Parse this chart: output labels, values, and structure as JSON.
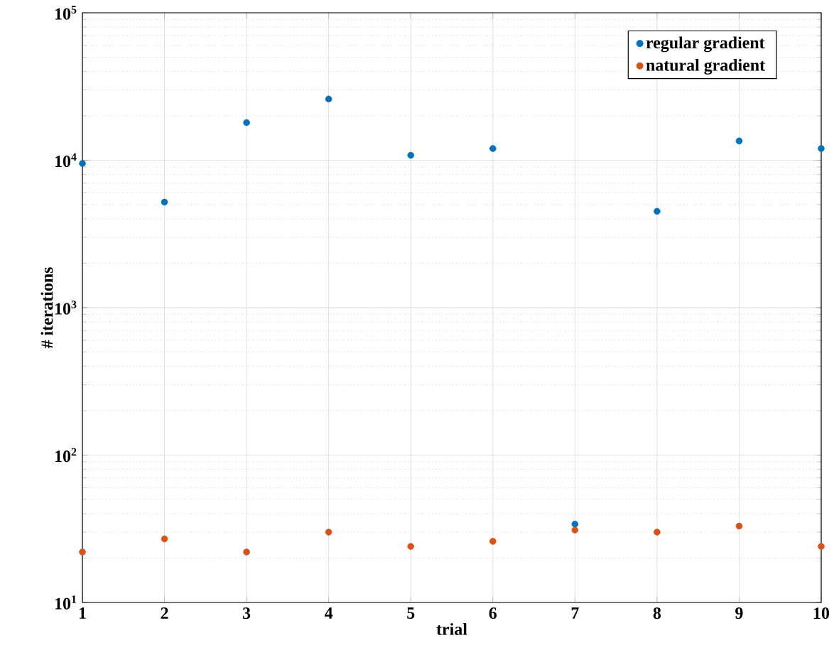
{
  "chart_data": {
    "type": "scatter",
    "xlabel": "trial",
    "ylabel": "# iterations",
    "x": [
      1,
      2,
      3,
      4,
      5,
      6,
      7,
      8,
      9,
      10
    ],
    "series": [
      {
        "name": "regular gradient",
        "color": "#0072bd",
        "values": [
          9500,
          5200,
          18000,
          26000,
          10800,
          12000,
          34,
          4500,
          13500,
          12000
        ]
      },
      {
        "name": "natural gradient",
        "color": "#d95319",
        "values": [
          22,
          27,
          22,
          30,
          24,
          26,
          31,
          30,
          33,
          24
        ]
      }
    ],
    "xlim": [
      1,
      10
    ],
    "xticks": [
      1,
      2,
      3,
      4,
      5,
      6,
      7,
      8,
      9,
      10
    ],
    "ylim": [
      10,
      100000
    ],
    "yticks": [
      {
        "value": 10,
        "label": "10$^{1}$"
      },
      {
        "value": 100,
        "label": "10$^{2}$"
      },
      {
        "value": 1000,
        "label": "10$^{3}$"
      },
      {
        "value": 10000,
        "label": "10$^{4}$"
      },
      {
        "value": 100000,
        "label": "10$^{5}$"
      }
    ],
    "log": "y",
    "grid": true,
    "legend": "top right",
    "marker": "circle"
  }
}
